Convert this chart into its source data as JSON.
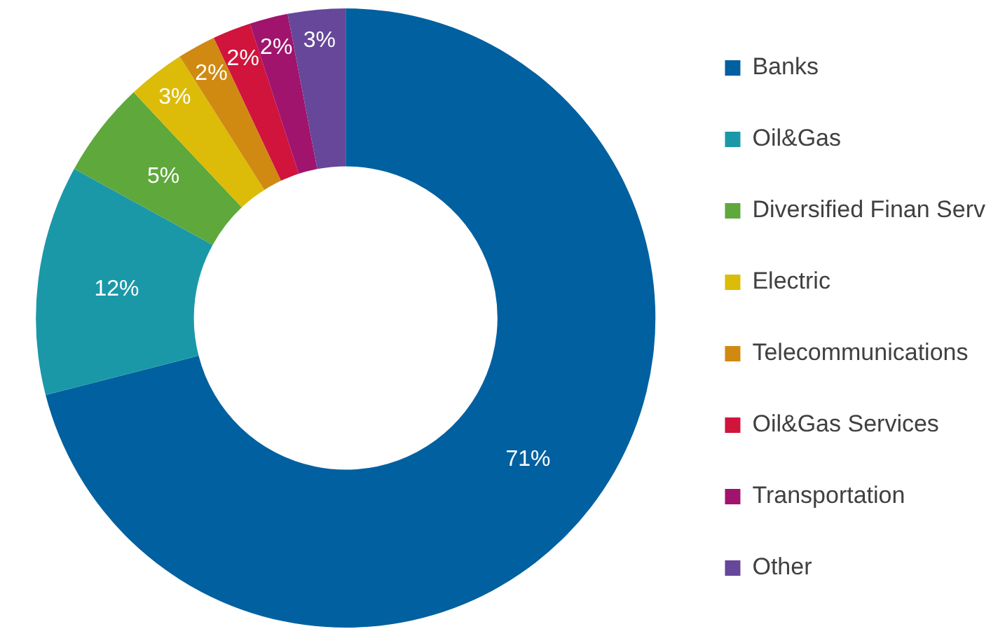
{
  "chart_data": {
    "type": "donut",
    "categories": [
      "Banks",
      "Oil&Gas",
      "Diversified Finan Serv",
      "Electric",
      "Telecommunications",
      "Oil&Gas Services",
      "Transportation",
      "Other"
    ],
    "values": [
      71,
      12,
      5,
      3,
      2,
      2,
      2,
      3
    ],
    "colors": [
      "#0060a0",
      "#1a98a8",
      "#5ea83c",
      "#dcbc08",
      "#d08a12",
      "#d0143c",
      "#a0146e",
      "#66479a"
    ],
    "value_labels": [
      "71%",
      "12%",
      "5%",
      "3%",
      "2%",
      "2%",
      "2%",
      "3%"
    ],
    "legend": "right"
  }
}
